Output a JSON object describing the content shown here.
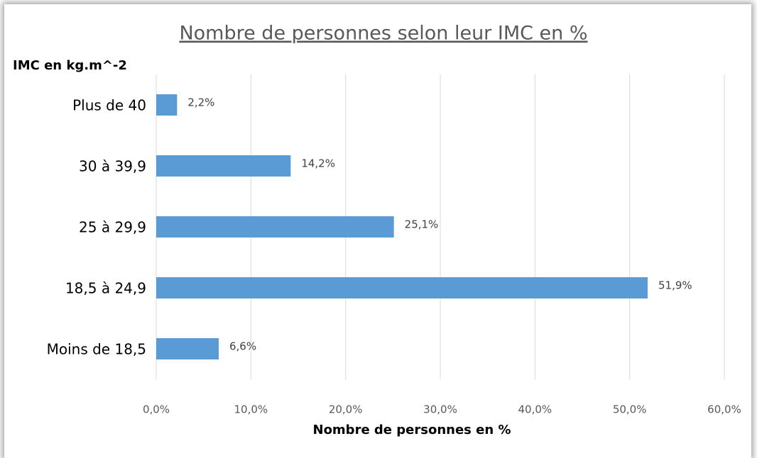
{
  "chart_data": {
    "type": "barh",
    "title": "Nombre de personnes selon leur IMC en %",
    "y_label": "IMC en kg.m^-2",
    "x_label": "Nombre de personnes en %",
    "categories": [
      "Plus de 40",
      "30 à 39,9",
      "25 à 29,9",
      "18,5 à 24,9",
      "Moins de 18,5"
    ],
    "values": [
      2.2,
      14.2,
      25.1,
      51.9,
      6.6
    ],
    "value_labels": [
      "2,2%",
      "14,2%",
      "25,1%",
      "51,9%",
      "6,6%"
    ],
    "color": "#5b9bd5",
    "xlim": [
      0,
      60
    ],
    "xticks": [
      {
        "value": 0,
        "label": "0,0%"
      },
      {
        "value": 10,
        "label": "10,0%"
      },
      {
        "value": 20,
        "label": "20,0%"
      },
      {
        "value": 30,
        "label": "30,0%"
      },
      {
        "value": 40,
        "label": "40,0%"
      },
      {
        "value": 50,
        "label": "50,0%"
      },
      {
        "value": 60,
        "label": "60,0%"
      }
    ],
    "grid": true
  }
}
